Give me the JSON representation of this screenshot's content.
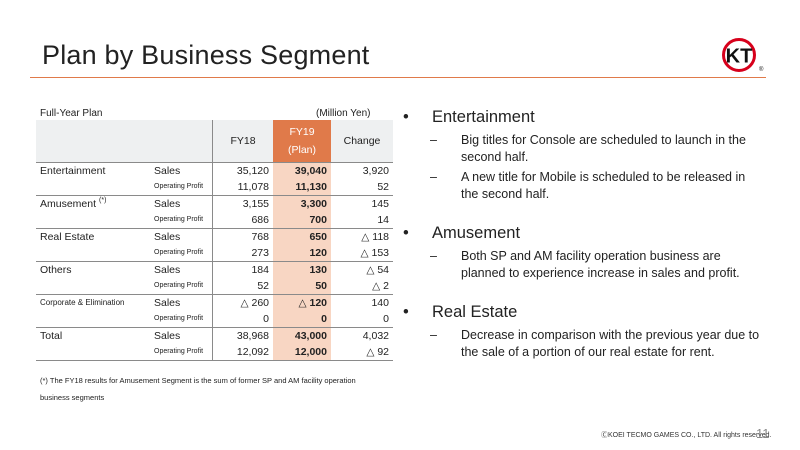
{
  "slide": {
    "title": "Plan by Business Segment",
    "page_number": "11",
    "copyright": "ⒸKOEI TECMO GAMES CO., LTD.  All rights reserved."
  },
  "table": {
    "caption_left": "Full-Year Plan",
    "caption_right": "(Million Yen)",
    "headers": {
      "fy18": "FY18",
      "fy19_line1": "FY19",
      "fy19_line2": "(Plan)",
      "change": "Change"
    },
    "rows": [
      {
        "segment": "Entertainment",
        "item": "Sales",
        "fy18": "35,120",
        "fy19": "39,040",
        "change": "3,920"
      },
      {
        "segment": "",
        "item": "Operating Profit",
        "fy18": "11,078",
        "fy19": "11,130",
        "change": "52"
      },
      {
        "segment": "Amusement",
        "segment_note": "(*)",
        "item": "Sales",
        "fy18": "3,155",
        "fy19": "3,300",
        "change": "145"
      },
      {
        "segment": "",
        "item": "Operating Profit",
        "fy18": "686",
        "fy19": "700",
        "change": "14"
      },
      {
        "segment": "Real Estate",
        "item": "Sales",
        "fy18": "768",
        "fy19": "650",
        "change": "△ 118"
      },
      {
        "segment": "",
        "item": "Operating Profit",
        "fy18": "273",
        "fy19": "120",
        "change": "△ 153"
      },
      {
        "segment": "Others",
        "item": "Sales",
        "fy18": "184",
        "fy19": "130",
        "change": "△ 54"
      },
      {
        "segment": "",
        "item": "Operating Profit",
        "fy18": "52",
        "fy19": "50",
        "change": "△ 2"
      },
      {
        "segment": "Corporate & Elimination",
        "item": "Sales",
        "fy18": "△ 260",
        "fy19": "△ 120",
        "change": "140"
      },
      {
        "segment": "",
        "item": "Operating Profit",
        "fy18": "0",
        "fy19": "0",
        "change": "0"
      },
      {
        "segment": "Total",
        "item": "Sales",
        "fy18": "38,968",
        "fy19": "43,000",
        "change": "4,032"
      },
      {
        "segment": "",
        "item": "Operating Profit",
        "fy18": "12,092",
        "fy19": "12,000",
        "change": "△ 92"
      }
    ],
    "footnote_line1": "(*) The FY18 results for Amusement Segment is the sum of former SP and AM facility operation",
    "footnote_line2": "business segments"
  },
  "bullets": [
    {
      "heading": "Entertainment",
      "subs": [
        "Big titles for Console are scheduled to launch in the second half.",
        "A new title for Mobile is scheduled to be released in the second half."
      ]
    },
    {
      "heading": "Amusement",
      "subs": [
        "Both SP and AM facility operation business  are planned to experience increase in sales and profit."
      ]
    },
    {
      "heading": "Real Estate",
      "subs": [
        "Decrease in comparison with the previous year due to the sale of a portion of our real estate for rent."
      ]
    }
  ],
  "logo": {
    "text": "KT",
    "mark": "®",
    "colors": {
      "red": "#d7001b",
      "black": "#111111"
    }
  },
  "colors": {
    "accent": "#e07a4a",
    "highlight": "#f8d6c3",
    "header_bg": "#eef0f1"
  }
}
